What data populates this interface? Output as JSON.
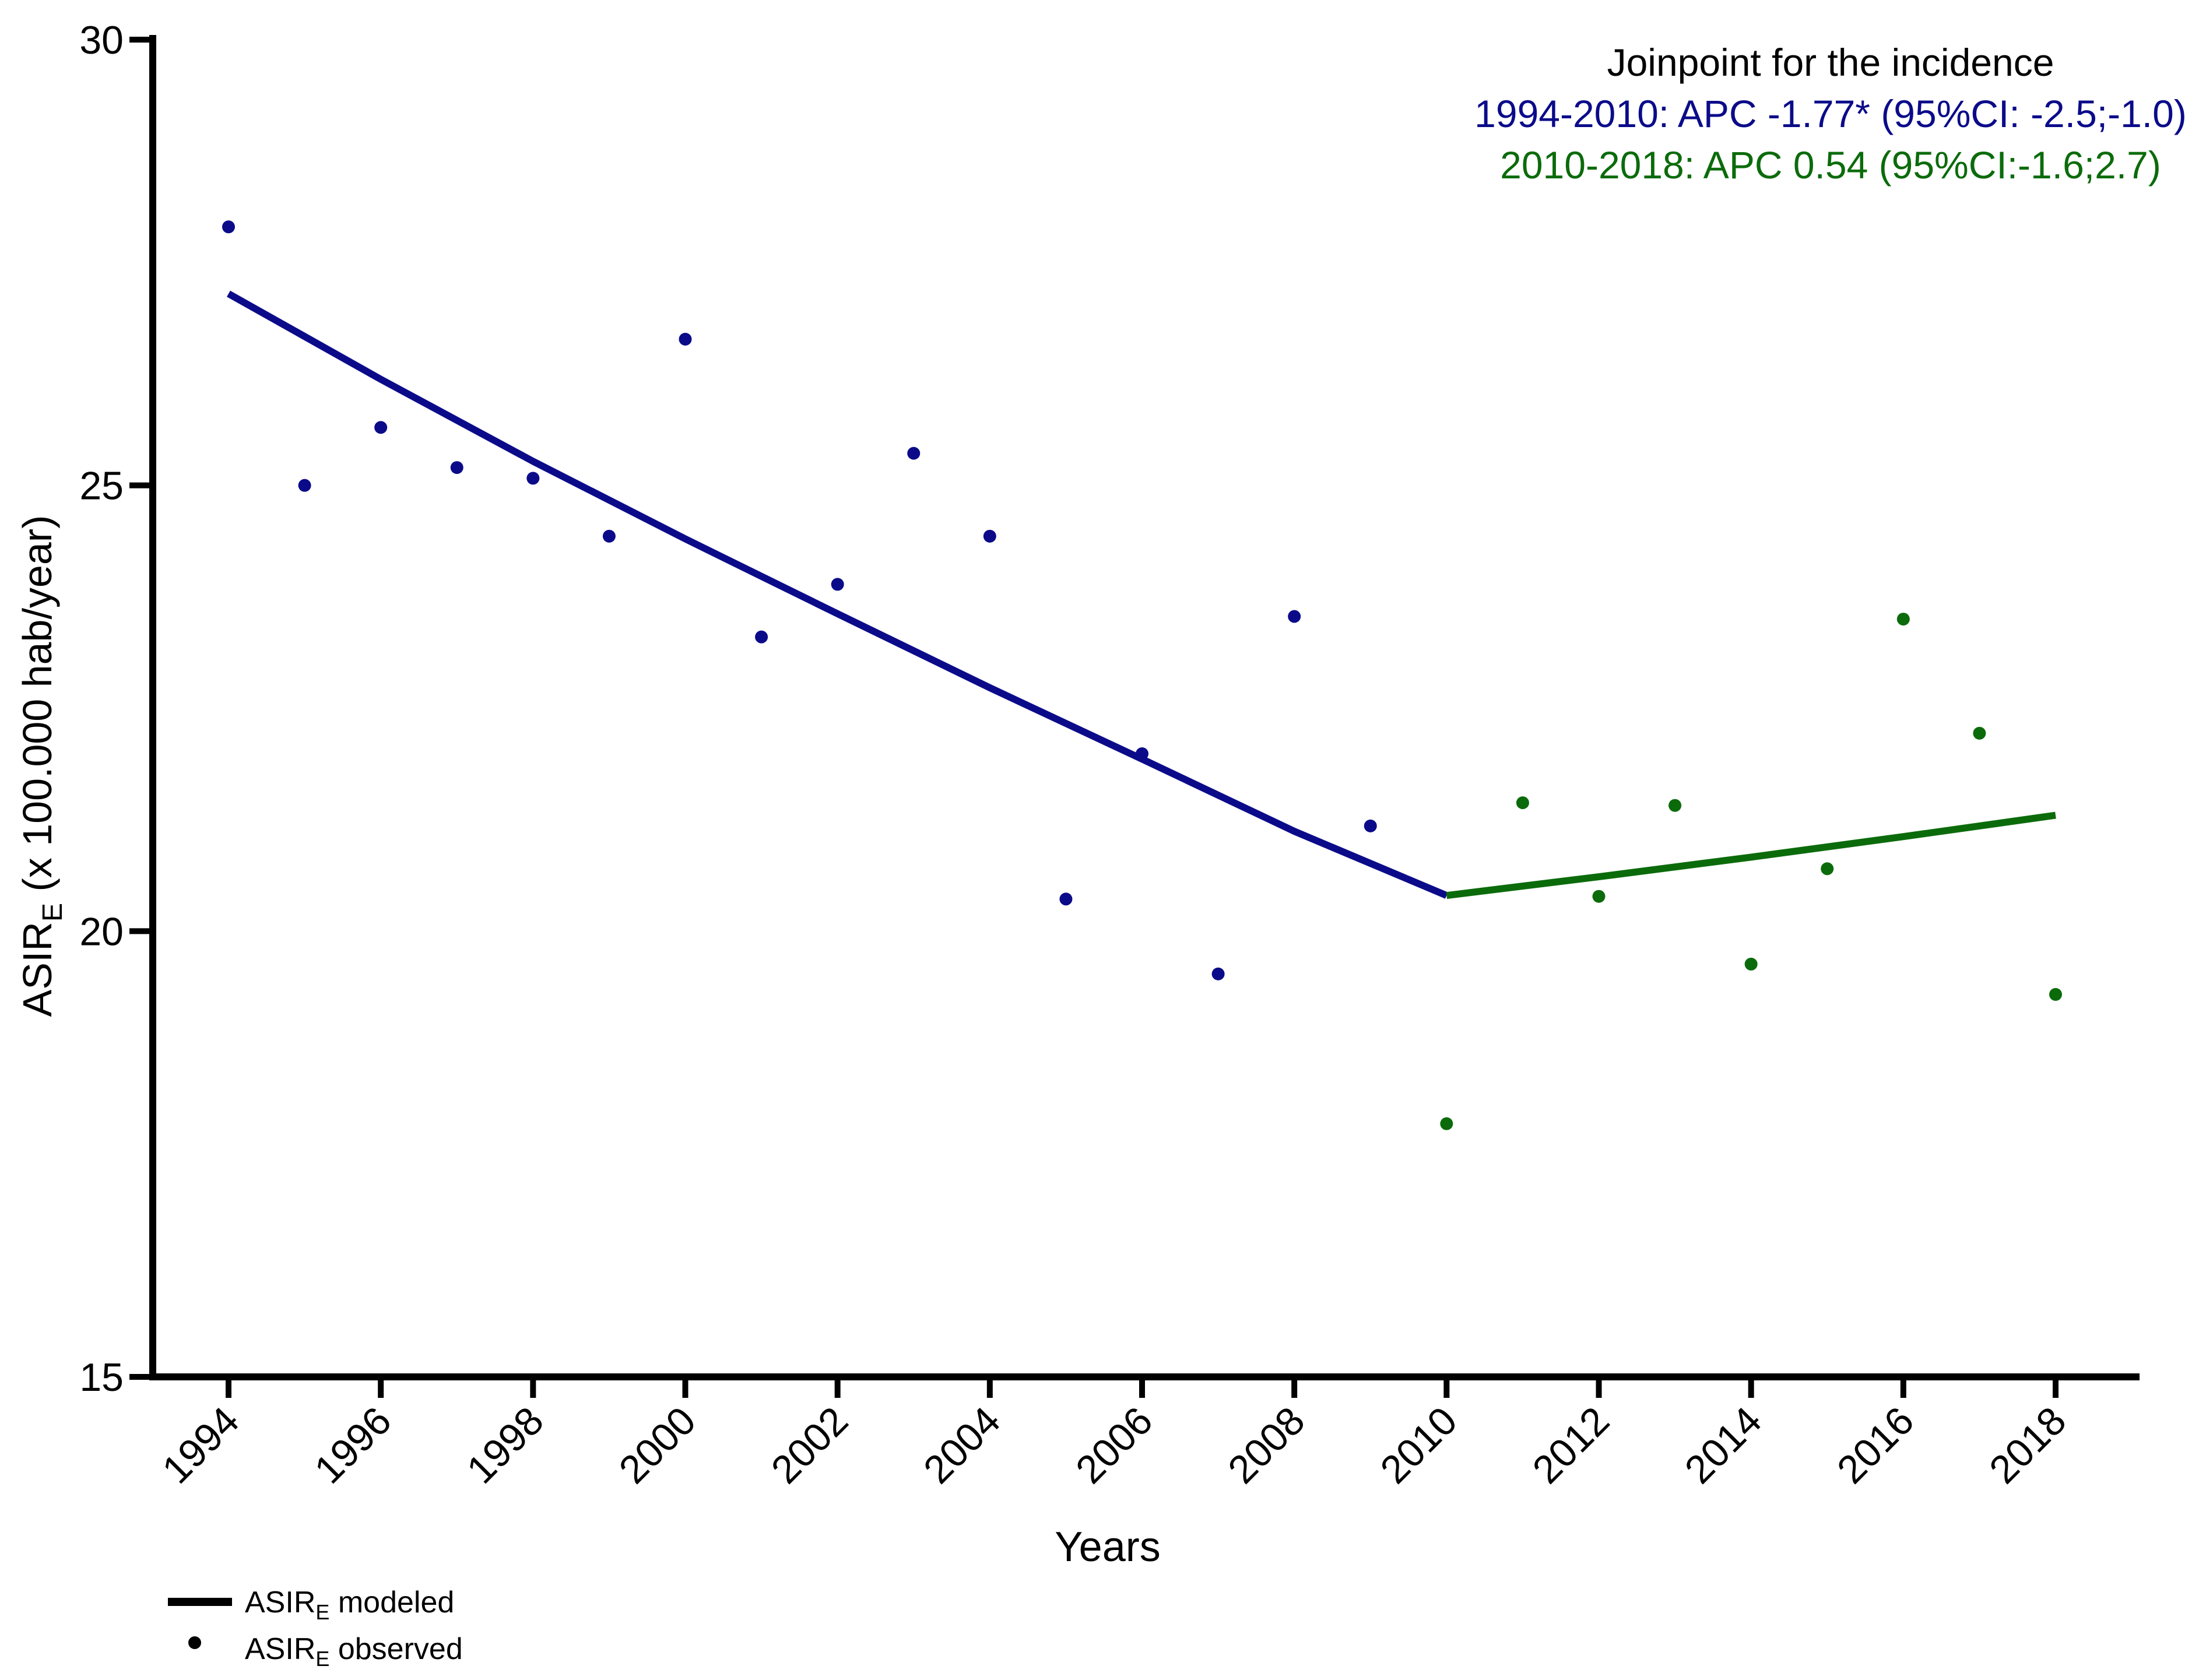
{
  "chart_data": {
    "type": "line",
    "title": "Joinpoint for the incidence",
    "annotations": [
      {
        "text": "1994-2010: APC  -1.77* (95%CI: -2.5;-1.0)",
        "color": "#0b0b8a"
      },
      {
        "text": "2010-2018: APC  0.54 (95%CI:-1.6;2.7)",
        "color": "#0b6b0b"
      }
    ],
    "xlabel": "Years",
    "ylabel": {
      "prefix": "ASIR",
      "sub": "E",
      "suffix": " (x 100.000 hab/year)"
    },
    "xlim": [
      1994,
      2018
    ],
    "ylim": [
      15,
      30
    ],
    "x_ticks": [
      "1994",
      "1996",
      "1998",
      "2000",
      "2002",
      "2004",
      "2006",
      "2008",
      "2010",
      "2012",
      "2014",
      "2016",
      "2018"
    ],
    "y_ticks": [
      "15",
      "20",
      "25",
      "30"
    ],
    "series": [
      {
        "name": "observed 1994-2010",
        "kind": "scatter",
        "color": "#0b0b8a",
        "x": [
          1994,
          1995,
          1996,
          1997,
          1998,
          1999,
          2000,
          2001,
          2002,
          2003,
          2004,
          2005,
          2006,
          2007,
          2008,
          2009
        ],
        "values": [
          27.9,
          25.0,
          25.65,
          25.2,
          25.08,
          24.43,
          26.64,
          23.3,
          23.89,
          25.36,
          24.43,
          20.36,
          21.99,
          19.52,
          23.53,
          21.18
        ]
      },
      {
        "name": "observed 2010-2018",
        "kind": "scatter",
        "color": "#0b6b0b",
        "x": [
          2010,
          2011,
          2012,
          2013,
          2014,
          2015,
          2016,
          2017,
          2018
        ],
        "values": [
          17.84,
          21.44,
          20.39,
          21.41,
          19.63,
          20.7,
          23.5,
          22.22,
          19.29
        ]
      },
      {
        "name": "modeled 1994-2010",
        "kind": "line",
        "color": "#0b0b8a",
        "x": [
          1994,
          1996,
          1998,
          2000,
          2002,
          2004,
          2006,
          2008,
          2010
        ],
        "values": [
          27.15,
          26.19,
          25.27,
          24.4,
          23.56,
          22.73,
          21.93,
          21.12,
          20.4
        ]
      },
      {
        "name": "modeled 2010-2018",
        "kind": "line",
        "color": "#0b6b0b",
        "x": [
          2010,
          2012,
          2014,
          2016,
          2018
        ],
        "values": [
          20.4,
          20.61,
          20.83,
          21.06,
          21.3
        ]
      }
    ],
    "legend": {
      "placement": "bottom-left",
      "items": [
        {
          "prefix": "ASIR",
          "sub": "E",
          "suffix": " modeled",
          "marker": "line"
        },
        {
          "prefix": "ASIR",
          "sub": "E",
          "suffix": " observed",
          "marker": "dot"
        }
      ]
    }
  },
  "colors": {
    "axis": "#000000",
    "period1": "#0b0b8a",
    "period2": "#0b6b0b"
  }
}
